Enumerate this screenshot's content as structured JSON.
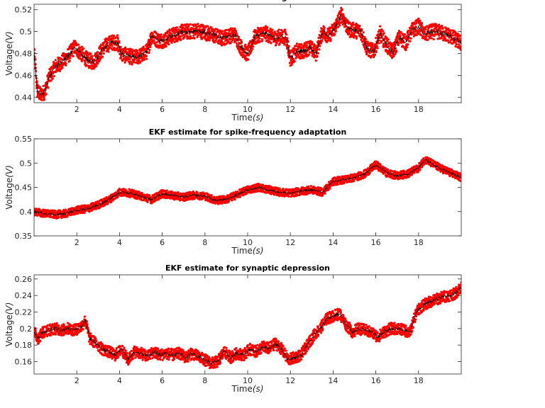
{
  "chart_data": [
    {
      "type": "scatter",
      "title": "EKF estimate for firing rate",
      "xlabel": "Time",
      "xunit": "s",
      "ylabel": "Voltage",
      "yunit": "V",
      "xlim": [
        0,
        20
      ],
      "ylim": [
        0.435,
        0.525
      ],
      "xticks": [
        2,
        4,
        6,
        8,
        10,
        12,
        14,
        16,
        18
      ],
      "yticks": [
        0.44,
        0.46,
        0.48,
        0.5,
        0.52
      ],
      "yticklabels": [
        "0.44",
        "0.46",
        "0.48",
        "0.5",
        "0.52"
      ],
      "grid": false,
      "noise_band": 0.007,
      "series": [
        {
          "color": "#ff0000",
          "style": "dots",
          "x": [
            0,
            0.05,
            0.15,
            0.3,
            0.5,
            0.7,
            1.0,
            1.3,
            1.6,
            1.9,
            2.2,
            2.5,
            2.8,
            3.0,
            3.3,
            3.6,
            3.9,
            4.1,
            4.4,
            4.7,
            5.0,
            5.3,
            5.5,
            5.8,
            6.1,
            6.4,
            6.7,
            7.0,
            7.3,
            7.6,
            7.9,
            8.2,
            8.5,
            8.8,
            9.1,
            9.4,
            9.7,
            10.0,
            10.3,
            10.6,
            10.9,
            11.2,
            11.5,
            11.8,
            12.0,
            12.3,
            12.6,
            12.9,
            13.2,
            13.5,
            13.8,
            14.1,
            14.4,
            14.7,
            15.0,
            15.3,
            15.6,
            15.9,
            16.2,
            16.5,
            16.8,
            17.1,
            17.4,
            17.7,
            18.0,
            18.3,
            18.6,
            18.9,
            19.2,
            19.5,
            19.8,
            20.0
          ],
          "values": [
            0.482,
            0.47,
            0.446,
            0.442,
            0.445,
            0.458,
            0.468,
            0.472,
            0.478,
            0.486,
            0.48,
            0.474,
            0.472,
            0.478,
            0.486,
            0.49,
            0.49,
            0.479,
            0.478,
            0.476,
            0.478,
            0.482,
            0.496,
            0.492,
            0.492,
            0.496,
            0.498,
            0.5,
            0.5,
            0.501,
            0.5,
            0.498,
            0.496,
            0.494,
            0.496,
            0.497,
            0.485,
            0.479,
            0.494,
            0.498,
            0.498,
            0.494,
            0.495,
            0.495,
            0.475,
            0.482,
            0.482,
            0.486,
            0.48,
            0.5,
            0.496,
            0.504,
            0.516,
            0.502,
            0.501,
            0.5,
            0.484,
            0.482,
            0.498,
            0.488,
            0.481,
            0.495,
            0.49,
            0.501,
            0.505,
            0.497,
            0.5,
            0.5,
            0.498,
            0.496,
            0.492,
            0.489
          ]
        },
        {
          "color": "#000000",
          "style": "line",
          "x": [
            0,
            0.05,
            0.15,
            0.3,
            0.5,
            0.7,
            1.0,
            1.3,
            1.6,
            1.9,
            2.2,
            2.5,
            2.8,
            3.0,
            3.3,
            3.6,
            3.9,
            4.1,
            4.4,
            4.7,
            5.0,
            5.3,
            5.5,
            5.8,
            6.1,
            6.4,
            6.7,
            7.0,
            7.3,
            7.6,
            7.9,
            8.2,
            8.5,
            8.8,
            9.1,
            9.4,
            9.7,
            10.0,
            10.3,
            10.6,
            10.9,
            11.2,
            11.5,
            11.8,
            12.0,
            12.3,
            12.6,
            12.9,
            13.2,
            13.5,
            13.8,
            14.1,
            14.4,
            14.7,
            15.0,
            15.3,
            15.6,
            15.9,
            16.2,
            16.5,
            16.8,
            17.1,
            17.4,
            17.7,
            18.0,
            18.3,
            18.6,
            18.9,
            19.2,
            19.5,
            19.8,
            20.0
          ],
          "values": [
            0.482,
            0.47,
            0.446,
            0.442,
            0.445,
            0.458,
            0.468,
            0.472,
            0.478,
            0.486,
            0.48,
            0.474,
            0.472,
            0.478,
            0.486,
            0.49,
            0.49,
            0.479,
            0.478,
            0.476,
            0.478,
            0.482,
            0.496,
            0.492,
            0.492,
            0.496,
            0.498,
            0.5,
            0.5,
            0.501,
            0.5,
            0.498,
            0.496,
            0.494,
            0.496,
            0.497,
            0.485,
            0.479,
            0.494,
            0.498,
            0.498,
            0.494,
            0.495,
            0.495,
            0.475,
            0.482,
            0.482,
            0.486,
            0.48,
            0.5,
            0.496,
            0.504,
            0.516,
            0.502,
            0.501,
            0.5,
            0.484,
            0.482,
            0.498,
            0.488,
            0.481,
            0.495,
            0.49,
            0.501,
            0.505,
            0.497,
            0.5,
            0.5,
            0.498,
            0.496,
            0.492,
            0.489
          ]
        }
      ]
    },
    {
      "type": "scatter",
      "title": "EKF estimate for spike-frequency adaptation",
      "xlabel": "Time",
      "xunit": "s",
      "ylabel": "Voltage",
      "yunit": "V",
      "xlim": [
        0,
        20
      ],
      "ylim": [
        0.35,
        0.55
      ],
      "xticks": [
        2,
        4,
        6,
        8,
        10,
        12,
        14,
        16,
        18
      ],
      "yticks": [
        0.35,
        0.4,
        0.45,
        0.5,
        0.55
      ],
      "yticklabels": [
        "0.35",
        "0.4",
        "0.45",
        "0.5",
        "0.55"
      ],
      "grid": false,
      "noise_band": 0.008,
      "series": [
        {
          "color": "#ff0000",
          "style": "dots",
          "x": [
            0,
            0.5,
            1.0,
            1.5,
            2.0,
            2.5,
            3.0,
            3.5,
            4.0,
            4.5,
            5.0,
            5.5,
            6.0,
            6.5,
            7.0,
            7.5,
            8.0,
            8.5,
            9.0,
            9.5,
            10.0,
            10.5,
            11.0,
            11.5,
            12.0,
            12.5,
            13.0,
            13.5,
            14.0,
            14.5,
            15.0,
            15.5,
            16.0,
            16.5,
            17.0,
            17.5,
            18.0,
            18.3,
            18.6,
            19.0,
            19.5,
            20.0
          ],
          "values": [
            0.4,
            0.396,
            0.394,
            0.396,
            0.403,
            0.406,
            0.414,
            0.424,
            0.44,
            0.438,
            0.432,
            0.425,
            0.437,
            0.433,
            0.43,
            0.434,
            0.432,
            0.423,
            0.425,
            0.435,
            0.445,
            0.45,
            0.445,
            0.44,
            0.438,
            0.442,
            0.445,
            0.44,
            0.462,
            0.466,
            0.47,
            0.478,
            0.497,
            0.48,
            0.474,
            0.478,
            0.49,
            0.508,
            0.5,
            0.49,
            0.48,
            0.47
          ]
        },
        {
          "color": "#000000",
          "style": "line",
          "x": [
            0,
            0.5,
            1.0,
            1.5,
            2.0,
            2.5,
            3.0,
            3.5,
            4.0,
            4.5,
            5.0,
            5.5,
            6.0,
            6.5,
            7.0,
            7.5,
            8.0,
            8.5,
            9.0,
            9.5,
            10.0,
            10.5,
            11.0,
            11.5,
            12.0,
            12.5,
            13.0,
            13.5,
            14.0,
            14.5,
            15.0,
            15.5,
            16.0,
            16.5,
            17.0,
            17.5,
            18.0,
            18.3,
            18.6,
            19.0,
            19.5,
            20.0
          ],
          "values": [
            0.4,
            0.396,
            0.394,
            0.396,
            0.403,
            0.406,
            0.414,
            0.424,
            0.44,
            0.438,
            0.432,
            0.425,
            0.437,
            0.433,
            0.43,
            0.434,
            0.432,
            0.423,
            0.425,
            0.435,
            0.445,
            0.45,
            0.445,
            0.44,
            0.438,
            0.442,
            0.445,
            0.44,
            0.462,
            0.466,
            0.47,
            0.478,
            0.497,
            0.48,
            0.474,
            0.478,
            0.49,
            0.508,
            0.5,
            0.49,
            0.48,
            0.47
          ]
        }
      ]
    },
    {
      "type": "scatter",
      "title": "EKF estimate for synaptic depression",
      "xlabel": "Time",
      "xunit": "s",
      "ylabel": "Voltage",
      "yunit": "V",
      "xlim": [
        0,
        20
      ],
      "ylim": [
        0.145,
        0.265
      ],
      "xticks": [
        2,
        4,
        6,
        8,
        10,
        12,
        14,
        16,
        18
      ],
      "yticks": [
        0.16,
        0.18,
        0.2,
        0.22,
        0.24,
        0.26
      ],
      "yticklabels": [
        "0.16",
        "0.18",
        "0.2",
        "0.22",
        "0.24",
        "0.26"
      ],
      "grid": false,
      "noise_band": 0.007,
      "series": [
        {
          "color": "#ff0000",
          "style": "dots",
          "x": [
            0,
            0.2,
            0.4,
            0.7,
            1.0,
            1.3,
            1.6,
            1.9,
            2.2,
            2.4,
            2.6,
            2.9,
            3.2,
            3.5,
            3.8,
            4.1,
            4.4,
            4.7,
            5.0,
            5.3,
            5.6,
            5.9,
            6.2,
            6.5,
            6.8,
            7.1,
            7.4,
            7.7,
            8.0,
            8.3,
            8.6,
            8.9,
            9.2,
            9.5,
            9.8,
            10.1,
            10.4,
            10.7,
            11.0,
            11.3,
            11.6,
            11.9,
            12.2,
            12.5,
            12.8,
            13.1,
            13.4,
            13.7,
            14.0,
            14.3,
            14.6,
            14.9,
            15.2,
            15.5,
            15.8,
            16.1,
            16.4,
            16.7,
            17.0,
            17.3,
            17.6,
            17.9,
            18.2,
            18.5,
            18.8,
            19.1,
            19.4,
            19.7,
            19.9,
            20.0
          ],
          "values": [
            0.196,
            0.188,
            0.196,
            0.198,
            0.2,
            0.198,
            0.2,
            0.198,
            0.202,
            0.21,
            0.188,
            0.182,
            0.175,
            0.172,
            0.168,
            0.175,
            0.162,
            0.172,
            0.17,
            0.166,
            0.172,
            0.168,
            0.17,
            0.168,
            0.17,
            0.165,
            0.17,
            0.166,
            0.162,
            0.158,
            0.16,
            0.172,
            0.165,
            0.17,
            0.168,
            0.175,
            0.172,
            0.178,
            0.176,
            0.182,
            0.175,
            0.162,
            0.165,
            0.168,
            0.18,
            0.192,
            0.2,
            0.212,
            0.215,
            0.218,
            0.205,
            0.196,
            0.2,
            0.198,
            0.195,
            0.19,
            0.196,
            0.2,
            0.2,
            0.198,
            0.195,
            0.22,
            0.228,
            0.232,
            0.235,
            0.238,
            0.24,
            0.242,
            0.248,
            0.25
          ]
        },
        {
          "color": "#000000",
          "style": "line",
          "x": [
            0,
            0.2,
            0.4,
            0.7,
            1.0,
            1.3,
            1.6,
            1.9,
            2.2,
            2.4,
            2.6,
            2.9,
            3.2,
            3.5,
            3.8,
            4.1,
            4.4,
            4.7,
            5.0,
            5.3,
            5.6,
            5.9,
            6.2,
            6.5,
            6.8,
            7.1,
            7.4,
            7.7,
            8.0,
            8.3,
            8.6,
            8.9,
            9.2,
            9.5,
            9.8,
            10.1,
            10.4,
            10.7,
            11.0,
            11.3,
            11.6,
            11.9,
            12.2,
            12.5,
            12.8,
            13.1,
            13.4,
            13.7,
            14.0,
            14.3,
            14.6,
            14.9,
            15.2,
            15.5,
            15.8,
            16.1,
            16.4,
            16.7,
            17.0,
            17.3,
            17.6,
            17.9,
            18.2,
            18.5,
            18.8,
            19.1,
            19.4,
            19.7,
            19.9,
            20.0
          ],
          "values": [
            0.196,
            0.188,
            0.196,
            0.198,
            0.2,
            0.198,
            0.2,
            0.198,
            0.202,
            0.21,
            0.188,
            0.182,
            0.175,
            0.172,
            0.168,
            0.175,
            0.162,
            0.172,
            0.17,
            0.166,
            0.172,
            0.168,
            0.17,
            0.168,
            0.17,
            0.165,
            0.17,
            0.166,
            0.162,
            0.158,
            0.16,
            0.172,
            0.165,
            0.17,
            0.168,
            0.175,
            0.172,
            0.178,
            0.176,
            0.182,
            0.175,
            0.162,
            0.165,
            0.168,
            0.18,
            0.192,
            0.2,
            0.212,
            0.215,
            0.218,
            0.205,
            0.196,
            0.2,
            0.198,
            0.195,
            0.19,
            0.196,
            0.2,
            0.2,
            0.198,
            0.195,
            0.22,
            0.228,
            0.232,
            0.235,
            0.238,
            0.24,
            0.242,
            0.248,
            0.25
          ]
        }
      ]
    }
  ]
}
